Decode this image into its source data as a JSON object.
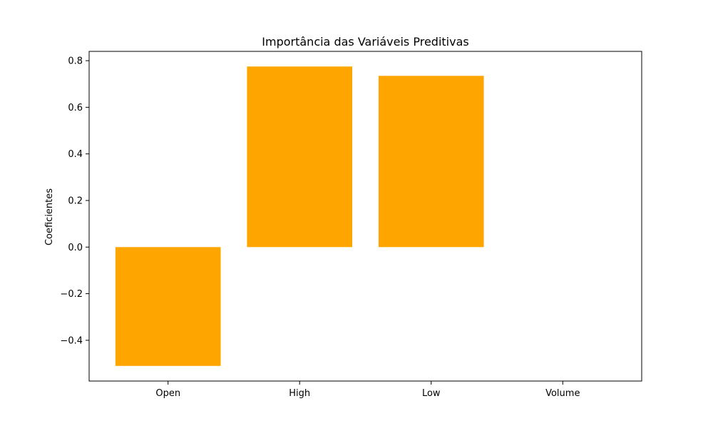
{
  "chart_data": {
    "type": "bar",
    "title": "Importância das Variáveis Preditivas",
    "xlabel": "",
    "ylabel": "Coeficientes",
    "categories": [
      "Open",
      "High",
      "Low",
      "Volume"
    ],
    "values": [
      -0.51,
      0.775,
      0.735,
      0.0
    ],
    "ylim": [
      -0.575,
      0.84
    ],
    "yticks": [
      -0.4,
      -0.2,
      0.0,
      0.2,
      0.4,
      0.6,
      0.8
    ],
    "ytick_labels": [
      "−0.4",
      "−0.2",
      "0.0",
      "0.2",
      "0.4",
      "0.6",
      "0.8"
    ],
    "grid": false,
    "legend": "none",
    "bar_color": "#ffa500"
  }
}
